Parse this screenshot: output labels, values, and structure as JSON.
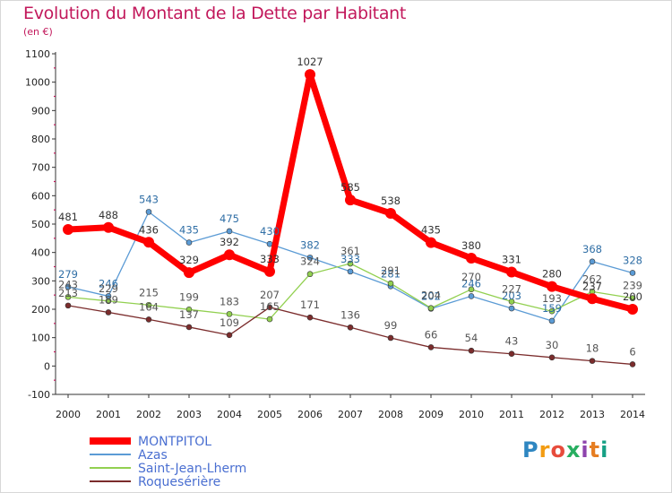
{
  "chart_data": {
    "type": "line",
    "title": "Evolution du Montant de la Dette par Habitant",
    "subtitle": "(en €)",
    "x": [
      "2000",
      "2001",
      "2002",
      "2003",
      "2004",
      "2005",
      "2006",
      "2007",
      "2008",
      "2009",
      "2010",
      "2011",
      "2012",
      "2013",
      "2014"
    ],
    "ylim": [
      -100,
      1100
    ],
    "yticks": [
      -100,
      0,
      100,
      200,
      300,
      400,
      500,
      600,
      700,
      800,
      900,
      1000,
      1100
    ],
    "grid": false,
    "legend_position": "bottom-left",
    "series": [
      {
        "name": "MONTPITOL",
        "color": "#ff0000",
        "values": [
          481,
          488,
          436,
          329,
          392,
          333,
          1027,
          585,
          538,
          435,
          380,
          331,
          280,
          237,
          200
        ]
      },
      {
        "name": "Azas",
        "color": "#5b9bd5",
        "values": [
          279,
          246,
          543,
          435,
          475,
          430,
          382,
          333,
          281,
          202,
          246,
          203,
          159,
          368,
          328
        ]
      },
      {
        "name": "Saint-Jean-Lherm",
        "color": "#92d050",
        "values": [
          243,
          229,
          215,
          199,
          183,
          165,
          324,
          361,
          291,
          204,
          270,
          227,
          193,
          262,
          239
        ]
      },
      {
        "name": "Roquesérière",
        "color": "#7b2c2c",
        "values": [
          213,
          189,
          164,
          137,
          109,
          207,
          171,
          136,
          99,
          66,
          54,
          43,
          30,
          18,
          6
        ]
      }
    ]
  },
  "watermark": "Proxiti",
  "watermark_letters": [
    "P",
    "r",
    "o",
    "x",
    "i",
    "t",
    "i"
  ],
  "watermark_colors": [
    "#2e86c1",
    "#f39c12",
    "#e74c3c",
    "#27ae60",
    "#8e44ad",
    "#e67e22",
    "#16a085"
  ]
}
